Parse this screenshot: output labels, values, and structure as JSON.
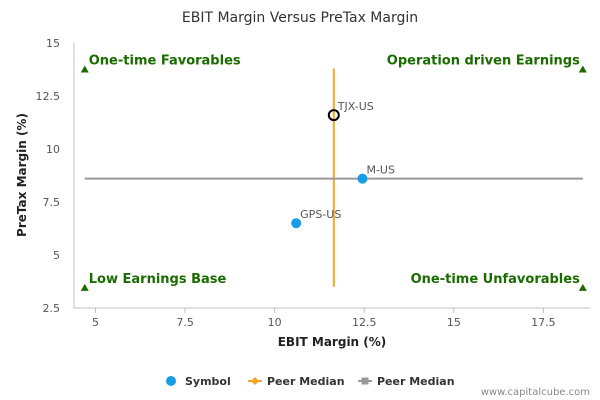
{
  "chart_data": {
    "type": "scatter",
    "title": "EBIT Margin Versus PreTax Margin",
    "xlabel": "EBIT Margin (%)",
    "ylabel": "PreTax Margin (%)",
    "xlim": [
      4.4,
      18.8
    ],
    "ylim": [
      2.5,
      15
    ],
    "x_ticks": [
      5,
      7.5,
      10,
      12.5,
      15,
      17.5
    ],
    "y_ticks": [
      2.5,
      5,
      7.5,
      10,
      12.5,
      15
    ],
    "x_tick_labels": [
      "5",
      "7.5",
      "10",
      "12.5",
      "15",
      "17.5"
    ],
    "y_tick_labels": [
      "2.5",
      "5",
      "7.5",
      "10",
      "12.5",
      "15"
    ],
    "points": [
      {
        "label": "TJX-US",
        "x": 11.65,
        "y": 11.6,
        "highlight": true
      },
      {
        "label": "M-US",
        "x": 12.45,
        "y": 8.6,
        "highlight": false
      },
      {
        "label": "GPS-US",
        "x": 10.6,
        "y": 6.5,
        "highlight": false
      }
    ],
    "peer_median_x": 11.65,
    "peer_median_y": 8.6,
    "peer_median_x_range": [
      3.5,
      13.8
    ],
    "peer_median_y_range": [
      4.7,
      18.6
    ],
    "quadrants": [
      {
        "label": "One-time Favorables",
        "marker_x": 4.7,
        "marker_y": 13.75,
        "position": "top-left"
      },
      {
        "label": "Operation driven Earnings",
        "marker_x": 18.6,
        "marker_y": 13.75,
        "position": "top-right"
      },
      {
        "label": "Low Earnings Base",
        "marker_x": 4.7,
        "marker_y": 3.45,
        "position": "bottom-left"
      },
      {
        "label": "One-time Unfavorables",
        "marker_x": 18.6,
        "marker_y": 3.45,
        "position": "bottom-right"
      }
    ],
    "legend": [
      {
        "label": "Symbol",
        "kind": "dot",
        "color": "#1a9be6"
      },
      {
        "label": "Peer Median",
        "kind": "line-diamond",
        "color": "#f5a623"
      },
      {
        "label": "Peer Median",
        "kind": "line-square",
        "color": "#999999"
      }
    ],
    "legend_position": "bottom-center",
    "grid": false,
    "colors": {
      "point": "#1a9be6",
      "highlight_stroke": "#000000",
      "vertical_median": "#f5a623",
      "horizontal_median": "#999999",
      "quadrant": "#1a6b00"
    }
  },
  "credit": "www.capitalcube.com"
}
